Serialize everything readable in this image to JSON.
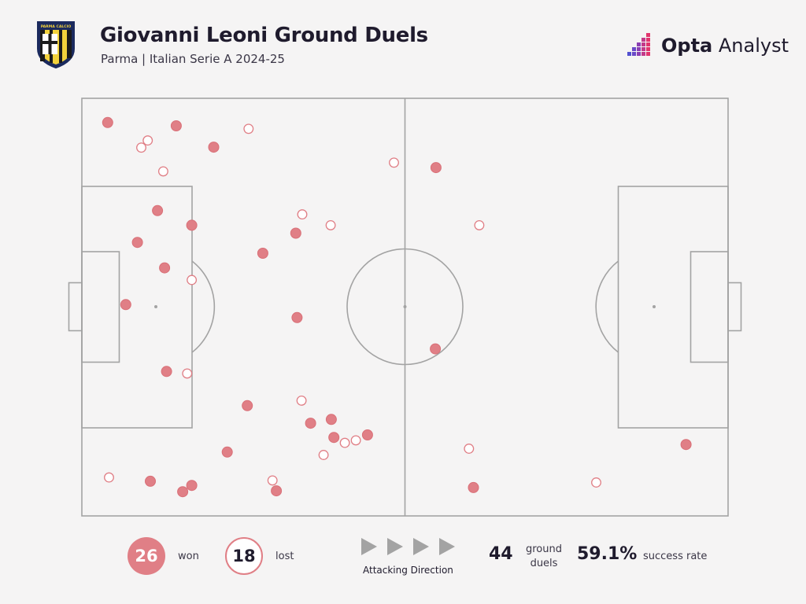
{
  "header": {
    "title": "Giovanni Leoni Ground Duels",
    "subtitle": "Parma | Italian Serie A 2024-25",
    "crest_text": "PARMA CALCIO",
    "brand_bold": "Opta",
    "brand_light": " Analyst"
  },
  "colors": {
    "won": "#e07f86",
    "lost_stroke": "#e07f86",
    "pitch_line": "#a3a3a3",
    "background": "#f5f4f4"
  },
  "legend": {
    "won_value": "26",
    "won_label": "won",
    "lost_value": "18",
    "lost_label": "lost",
    "direction_label": "Attacking Direction",
    "total_value": "44",
    "total_label_line1": "ground",
    "total_label_line2": "duels",
    "rate_value": "59.1%",
    "rate_label": "success rate"
  },
  "chart_data": {
    "type": "scatter",
    "xlim": [
      0,
      100
    ],
    "ylim": [
      0,
      100
    ],
    "series": [
      {
        "name": "won",
        "points": [
          [
            4.0,
            94.2
          ],
          [
            14.6,
            93.4
          ],
          [
            20.4,
            88.3
          ],
          [
            54.8,
            83.4
          ],
          [
            11.7,
            73.1
          ],
          [
            17.0,
            69.6
          ],
          [
            8.6,
            65.5
          ],
          [
            33.1,
            67.7
          ],
          [
            28.0,
            62.9
          ],
          [
            12.8,
            59.4
          ],
          [
            6.8,
            50.6
          ],
          [
            33.3,
            47.5
          ],
          [
            54.7,
            40.0
          ],
          [
            13.1,
            34.6
          ],
          [
            25.6,
            26.4
          ],
          [
            35.4,
            22.2
          ],
          [
            38.6,
            23.1
          ],
          [
            39.0,
            18.8
          ],
          [
            44.2,
            19.4
          ],
          [
            22.5,
            15.3
          ],
          [
            10.6,
            8.3
          ],
          [
            17.0,
            7.3
          ],
          [
            15.6,
            5.8
          ],
          [
            30.1,
            6.0
          ],
          [
            60.6,
            6.8
          ],
          [
            93.5,
            17.1
          ]
        ]
      },
      {
        "name": "lost",
        "points": [
          [
            25.8,
            92.7
          ],
          [
            10.2,
            89.9
          ],
          [
            9.2,
            88.2
          ],
          [
            12.6,
            82.5
          ],
          [
            48.3,
            84.6
          ],
          [
            34.1,
            72.2
          ],
          [
            38.5,
            69.6
          ],
          [
            61.5,
            69.6
          ],
          [
            17.0,
            56.5
          ],
          [
            16.3,
            34.1
          ],
          [
            34.0,
            27.6
          ],
          [
            40.7,
            17.5
          ],
          [
            42.4,
            18.1
          ],
          [
            37.4,
            14.6
          ],
          [
            59.9,
            16.1
          ],
          [
            4.2,
            9.2
          ],
          [
            29.5,
            8.5
          ],
          [
            79.6,
            8.0
          ]
        ]
      }
    ]
  }
}
